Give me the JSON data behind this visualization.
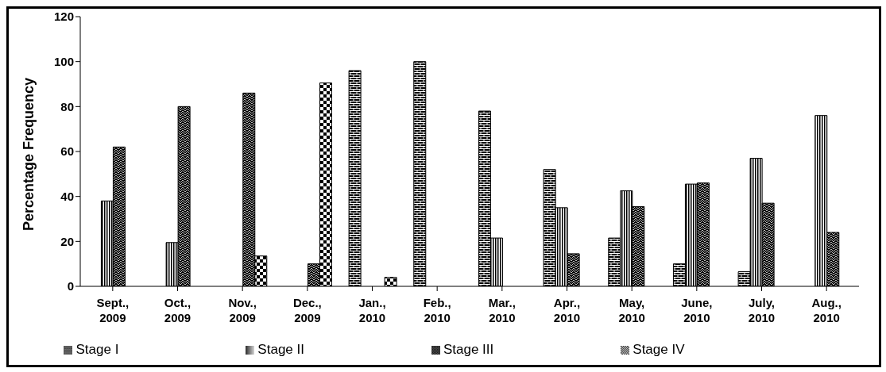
{
  "chart_data": {
    "type": "bar",
    "ylabel": "Percentage Frequency",
    "categories": [
      "Sept., 2009",
      "Oct., 2009",
      "Nov., 2009",
      "Dec., 2009",
      "Jan., 2010",
      "Feb., 2010",
      "Mar., 2010",
      "Apr., 2010",
      "May, 2010",
      "June, 2010",
      "July, 2010",
      "Aug., 2010"
    ],
    "series": [
      {
        "name": "Stage I",
        "color": "#000000",
        "values": [
          null,
          null,
          null,
          null,
          96,
          100,
          78,
          52,
          21.5,
          10,
          6.5,
          null
        ]
      },
      {
        "name": "Stage II",
        "color": "#000000",
        "values": [
          38,
          19.5,
          null,
          null,
          null,
          null,
          21.5,
          35,
          42.5,
          45.5,
          57,
          76
        ]
      },
      {
        "name": "Stage III",
        "color": "#000000",
        "values": [
          62,
          80,
          86,
          10,
          null,
          null,
          null,
          14.5,
          35.5,
          46,
          37,
          24
        ]
      },
      {
        "name": "Stage IV",
        "color": "#000000",
        "values": [
          null,
          null,
          13.5,
          90.5,
          4,
          null,
          null,
          null,
          null,
          null,
          null,
          null
        ]
      }
    ],
    "ylim": [
      0,
      120
    ],
    "yticks": [
      0,
      20,
      40,
      60,
      80,
      100,
      120
    ],
    "grid": false,
    "legend": "bottom"
  }
}
